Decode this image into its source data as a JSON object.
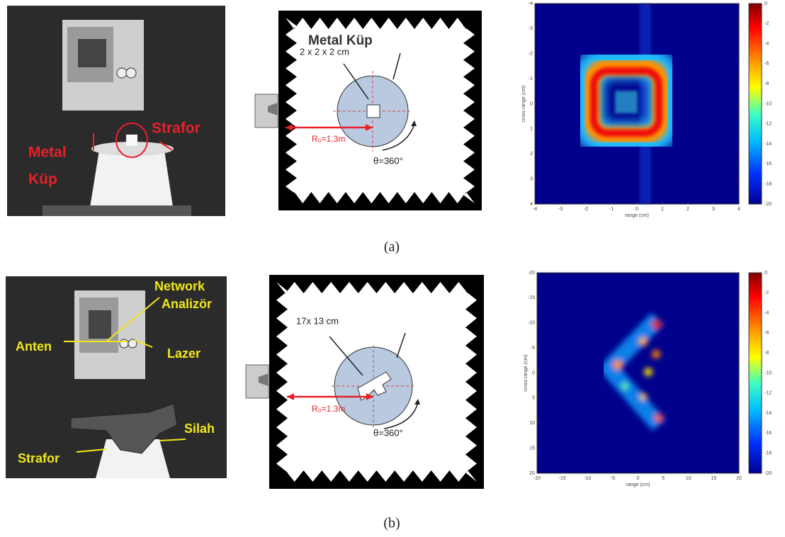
{
  "figure": {
    "panels": [
      {
        "caption": "(a)",
        "photo": {
          "labels": [
            "Metal",
            "Küp",
            "Strafor"
          ]
        },
        "diagram": {
          "target": "Metal Küp",
          "size": "2 x 2 x 2 cm",
          "distance": "R₀=1.3m",
          "rotation": "θ=360°"
        },
        "image": {
          "xlabel": "range (cm)",
          "ylabel": "cross range (cm)",
          "xticks": [
            -4,
            -3,
            -2,
            -1,
            0,
            1,
            2,
            3,
            4
          ],
          "yticks": [
            -4,
            -3,
            -2,
            -1,
            0,
            1,
            2,
            3,
            4
          ],
          "colorbar_ticks": [
            0,
            -2,
            -4,
            -6,
            -8,
            -10,
            -12,
            -14,
            -16,
            -18,
            -20
          ]
        }
      },
      {
        "caption": "(b)",
        "photo": {
          "labels": [
            "Network",
            "Analizör",
            "Anten",
            "Lazer",
            "Silah",
            "Strafor"
          ]
        },
        "diagram": {
          "size": "17x 13 cm",
          "distance": "R₀=1.3m",
          "rotation": "θ=360°"
        },
        "image": {
          "xlabel": "range (cm)",
          "ylabel": "cross range (cm)",
          "xticks": [
            -20,
            -15,
            -10,
            -5,
            0,
            5,
            10,
            15,
            20
          ],
          "yticks": [
            -20,
            -15,
            -10,
            -5,
            0,
            5,
            10,
            15,
            20
          ],
          "colorbar_ticks": [
            0,
            -2,
            -4,
            -6,
            -8,
            -10,
            -12,
            -14,
            -16,
            -18,
            -20
          ]
        }
      }
    ]
  }
}
